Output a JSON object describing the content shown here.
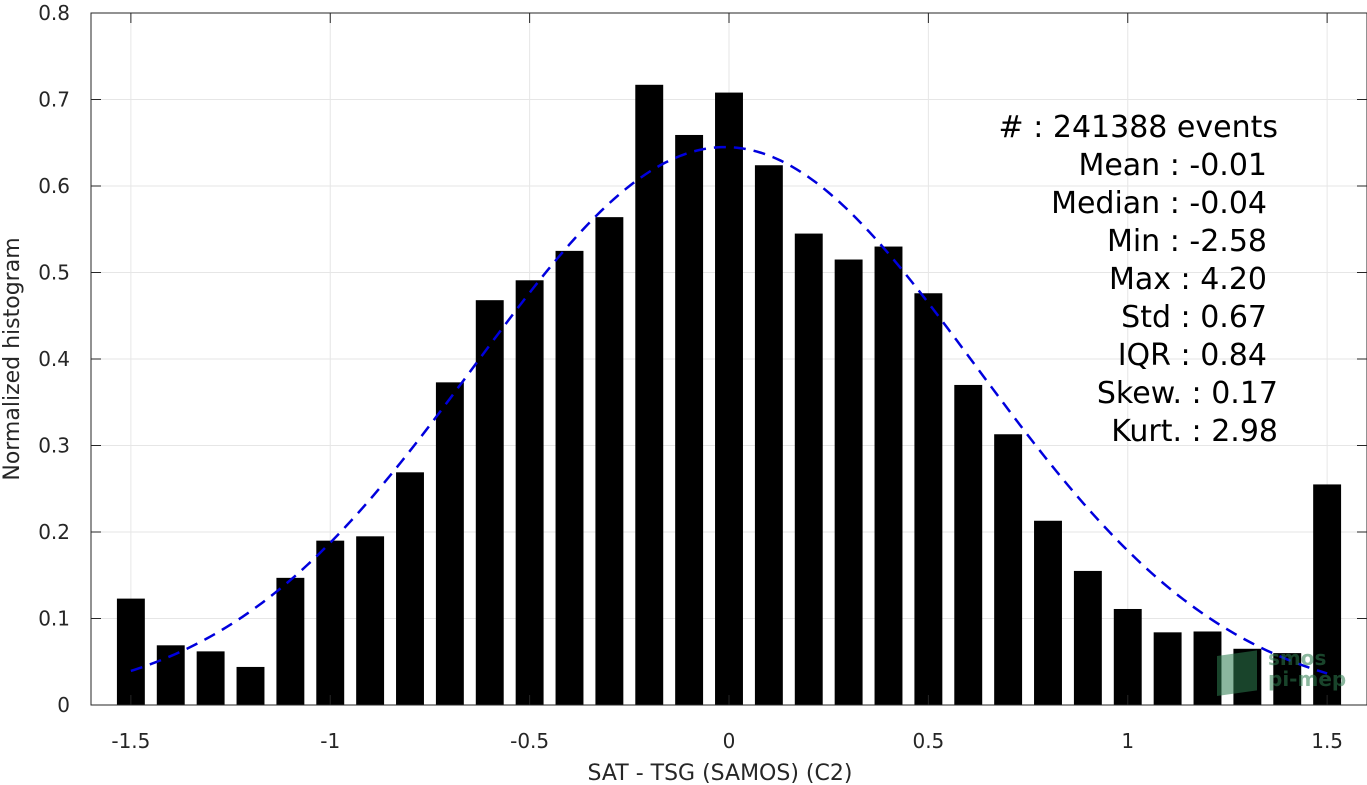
{
  "chart_data": {
    "type": "bar",
    "title": "",
    "xlabel": "SAT - TSG (SAMOS) (C2)",
    "ylabel": "Normalized histogram",
    "xlim": [
      -1.6,
      1.6
    ],
    "ylim": [
      0,
      0.8
    ],
    "grid": true,
    "x_ticks": [
      "-1.5",
      "-1",
      "-0.5",
      "0",
      "0.5",
      "1",
      "1.5"
    ],
    "x_tick_values": [
      -1.5,
      -1,
      -0.5,
      0,
      0.5,
      1,
      1.5
    ],
    "y_ticks": [
      "0",
      "0.1",
      "0.2",
      "0.3",
      "0.4",
      "0.5",
      "0.6",
      "0.7",
      "0.8"
    ],
    "y_tick_values": [
      0,
      0.1,
      0.2,
      0.3,
      0.4,
      0.5,
      0.6,
      0.7,
      0.8
    ],
    "bar_width": 0.07,
    "x": [
      -1.5,
      -1.4,
      -1.3,
      -1.2,
      -1.1,
      -1.0,
      -0.9,
      -0.8,
      -0.7,
      -0.6,
      -0.5,
      -0.4,
      -0.3,
      -0.2,
      -0.1,
      0.0,
      0.1,
      0.2,
      0.3,
      0.4,
      0.5,
      0.6,
      0.7,
      0.8,
      0.9,
      1.0,
      1.1,
      1.2,
      1.3,
      1.4,
      1.5
    ],
    "values": [
      0.123,
      0.069,
      0.062,
      0.044,
      0.147,
      0.19,
      0.195,
      0.269,
      0.373,
      0.468,
      0.491,
      0.525,
      0.564,
      0.717,
      0.659,
      0.708,
      0.624,
      0.545,
      0.515,
      0.53,
      0.476,
      0.37,
      0.313,
      0.213,
      0.155,
      0.111,
      0.084,
      0.085,
      0.065,
      0.06,
      0.255
    ],
    "bar_color": "#000000",
    "fit": {
      "style": "dashed",
      "color": "#0000dd",
      "mean": -0.01,
      "std": 0.63,
      "peak": 0.645,
      "x_range": [
        -1.5,
        1.5
      ]
    },
    "stats": [
      {
        "label": "#  : 241388 events",
        "anchor": "end_far"
      },
      {
        "label": "Mean : -0.01"
      },
      {
        "label": "Median : -0.04"
      },
      {
        "label": "Min : -2.58"
      },
      {
        "label": "Max : 4.20"
      },
      {
        "label": "Std : 0.67"
      },
      {
        "label": "IQR : 0.84"
      },
      {
        "label": "Skew. : 0.17",
        "anchor": "end_far"
      },
      {
        "label": "Kurt. : 2.98",
        "anchor": "end_far"
      }
    ]
  },
  "logo": {
    "line1": "smos",
    "line2": "pi-mep",
    "color": "#2e7d4f"
  }
}
